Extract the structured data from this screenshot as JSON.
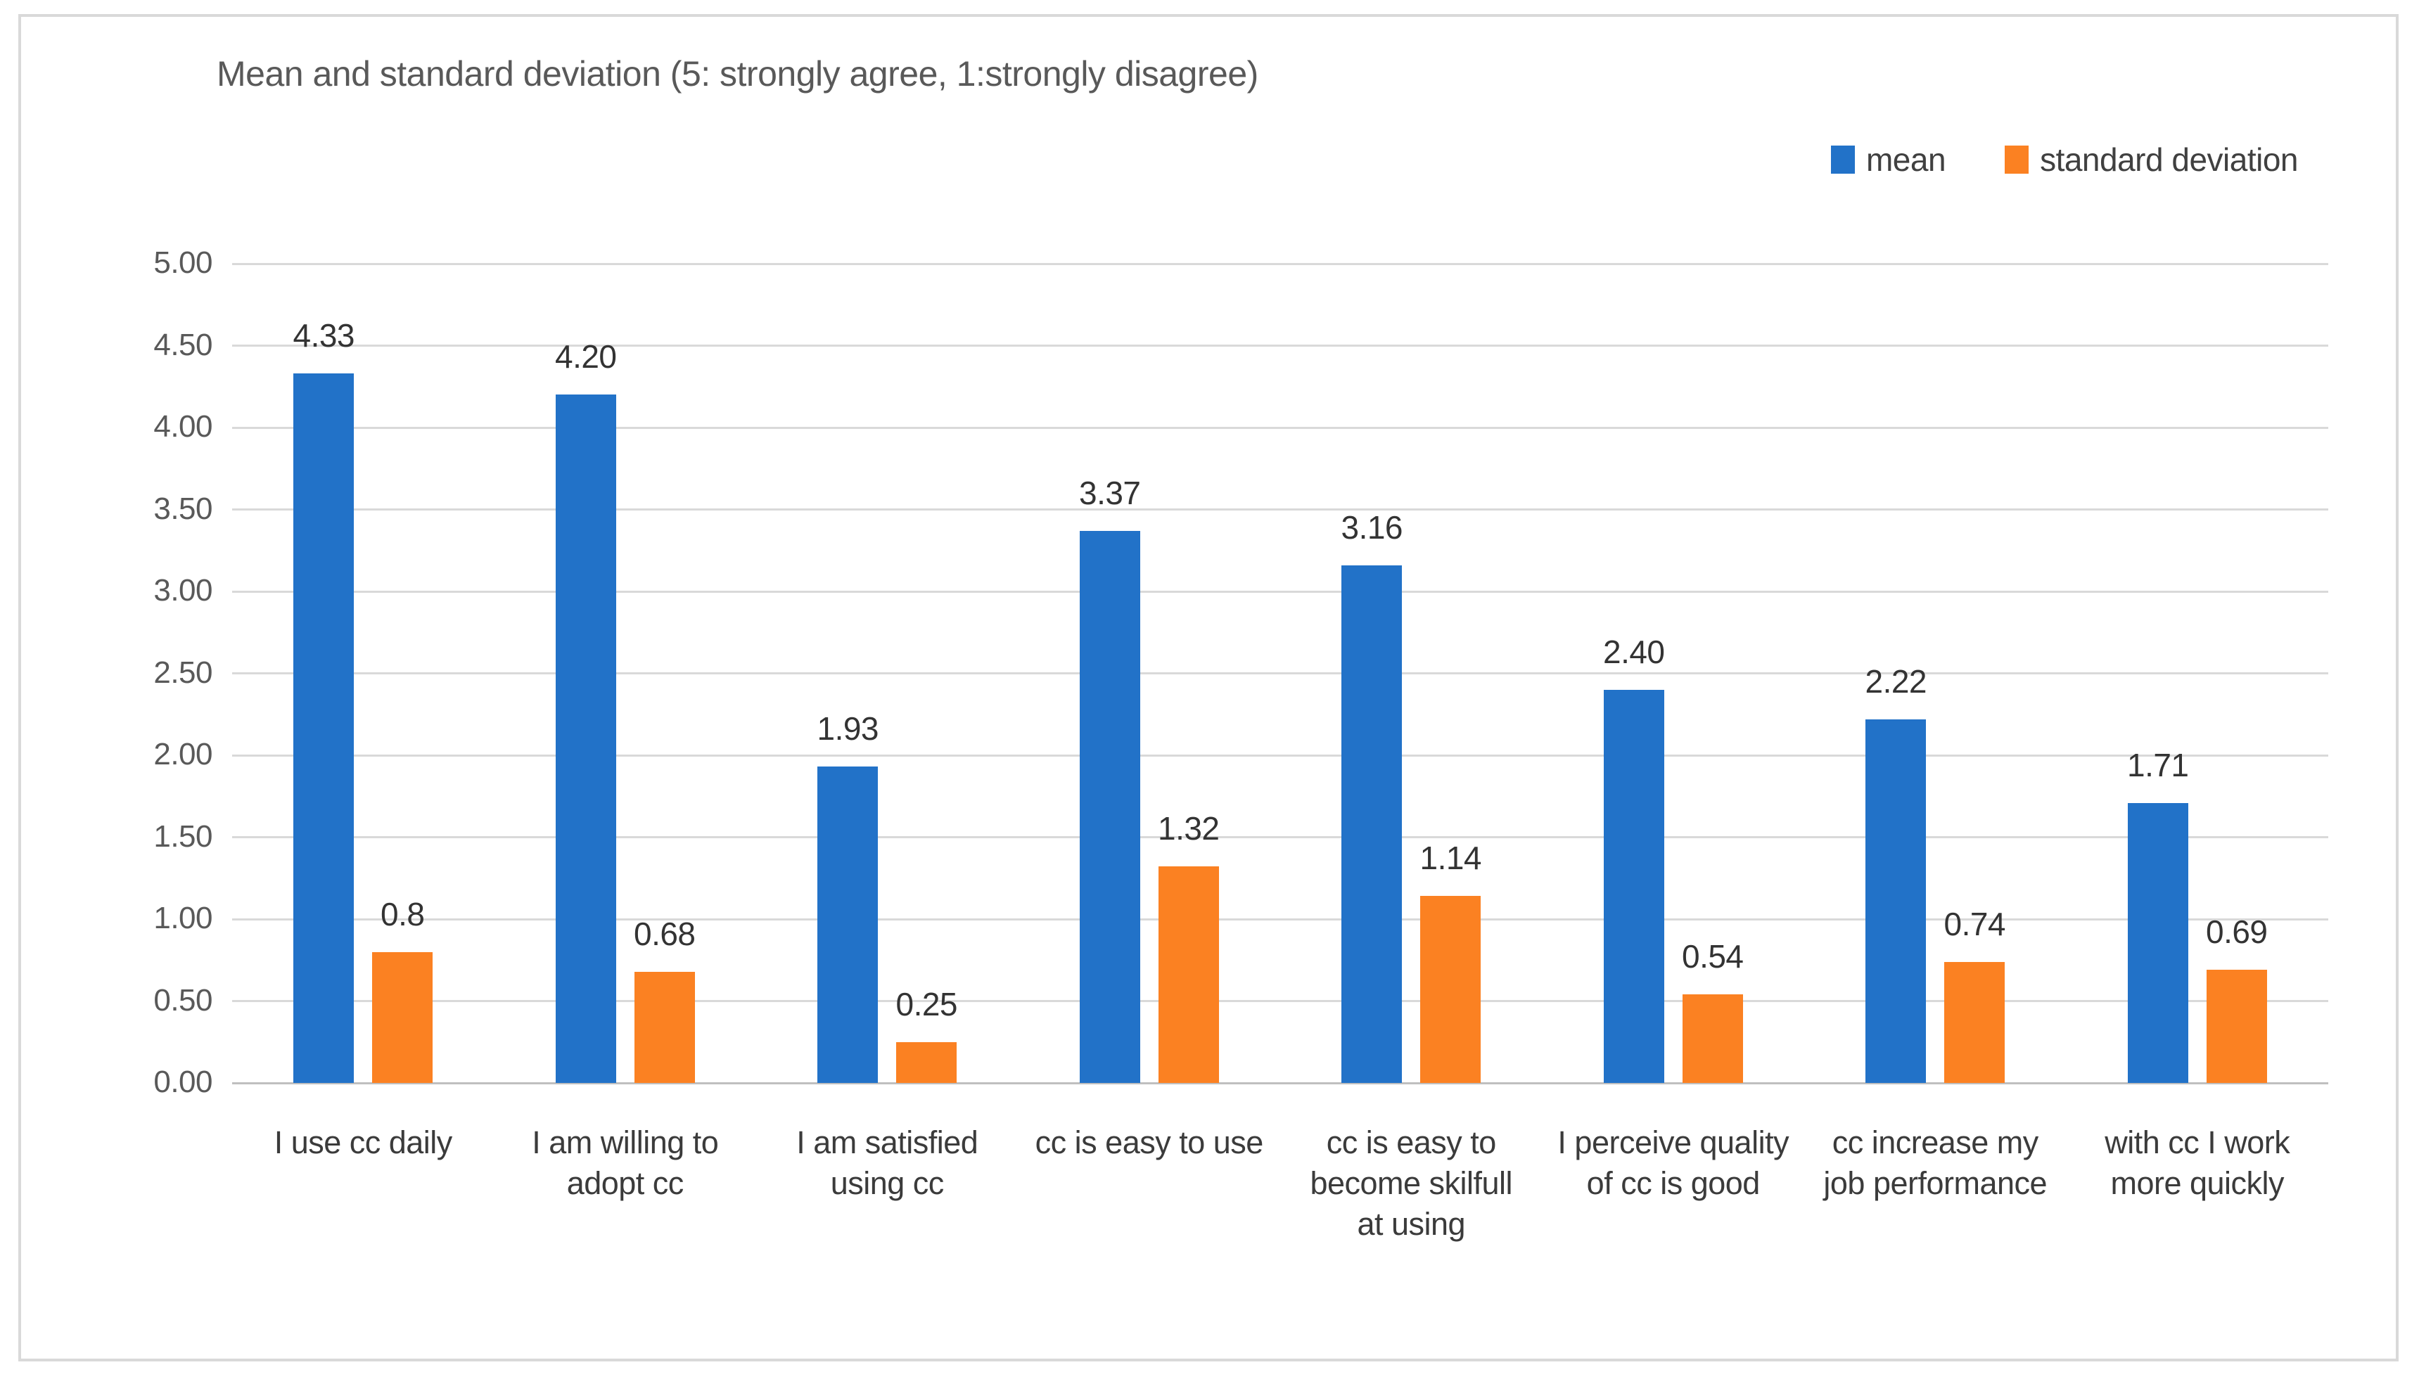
{
  "frame": {
    "border_color": "#D9D9D9",
    "background": "#FFFFFF"
  },
  "chart_data": {
    "type": "bar",
    "title": "Mean and standard deviation (5: strongly agree, 1:strongly disagree)",
    "categories": [
      "I use cc daily",
      "I am willing to\nadopt cc",
      "I am satisfied\nusing cc",
      "cc is easy to use",
      "cc is easy to\nbecome skilfull\nat using",
      "I perceive quality\nof cc is good",
      "cc increase my\njob performance",
      "with cc I work\nmore quickly"
    ],
    "series": [
      {
        "name": "mean",
        "color": "#2272C8",
        "values": [
          4.33,
          4.2,
          1.93,
          3.37,
          3.16,
          2.4,
          2.22,
          1.71
        ],
        "labels": [
          "4.33",
          "4.20",
          "1.93",
          "3.37",
          "3.16",
          "2.40",
          "2.22",
          "1.71"
        ]
      },
      {
        "name": "standard deviation",
        "color": "#FB8122",
        "values": [
          0.8,
          0.68,
          0.25,
          1.32,
          1.14,
          0.54,
          0.74,
          0.69
        ],
        "labels": [
          "0.8",
          "0.68",
          "0.25",
          "1.32",
          "1.14",
          "0.54",
          "0.74",
          "0.69"
        ]
      }
    ],
    "ylim": [
      0,
      5
    ],
    "ytick_step": 0.5,
    "ytick_labels": [
      "0.00",
      "0.50",
      "1.00",
      "1.50",
      "2.00",
      "2.50",
      "3.00",
      "3.50",
      "4.00",
      "4.50",
      "5.00"
    ],
    "grid": true,
    "legend_position": "top-right",
    "gridline_color": "#D9D9D9",
    "axis_line_color": "#BFBFBF",
    "bar_label_color": "#333333",
    "tick_label_color": "#595959",
    "title_color": "#595959"
  },
  "legend": {
    "items": [
      {
        "label": "mean",
        "color": "#2272C8"
      },
      {
        "label": "standard deviation",
        "color": "#FB8122"
      }
    ]
  }
}
